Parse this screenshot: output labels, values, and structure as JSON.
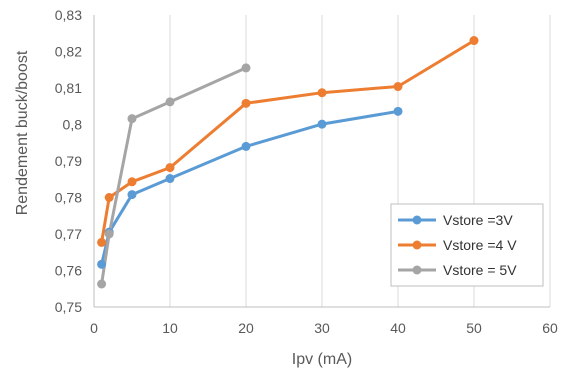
{
  "chart_data": {
    "type": "line",
    "xlabel": "Ipv (mA)",
    "ylabel": "Rendement buck/boost",
    "xlim": [
      0,
      60
    ],
    "ylim": [
      0.75,
      0.83
    ],
    "xticks": [
      0,
      10,
      20,
      30,
      40,
      50,
      60
    ],
    "yticks": [
      0.75,
      0.76,
      0.77,
      0.78,
      0.79,
      0.8,
      0.81,
      0.82,
      0.83
    ],
    "xtick_labels": [
      "0",
      "10",
      "20",
      "30",
      "40",
      "50",
      "60"
    ],
    "ytick_labels": [
      "0,75",
      "0,76",
      "0,77",
      "0,78",
      "0,79",
      "0,8",
      "0,81",
      "0,82",
      "0,83"
    ],
    "grid": "vertical",
    "legend_position": "right",
    "series": [
      {
        "name": "Vstore =3V",
        "color": "#5B9BD5",
        "x": [
          1,
          2,
          5,
          10,
          20,
          30,
          40
        ],
        "y": [
          0.7617,
          0.7705,
          0.7808,
          0.7852,
          0.794,
          0.8001,
          0.8036
        ]
      },
      {
        "name": "Vstore =4 V",
        "color": "#ED7D31",
        "x": [
          1,
          2,
          5,
          10,
          20,
          30,
          40,
          50
        ],
        "y": [
          0.7677,
          0.78,
          0.7843,
          0.7882,
          0.8058,
          0.8087,
          0.8104,
          0.823
        ]
      },
      {
        "name": "Vstore = 5V",
        "color": "#A5A5A5",
        "x": [
          1,
          2,
          5,
          10,
          20
        ],
        "y": [
          0.7563,
          0.77,
          0.8016,
          0.8062,
          0.8155
        ]
      }
    ]
  }
}
